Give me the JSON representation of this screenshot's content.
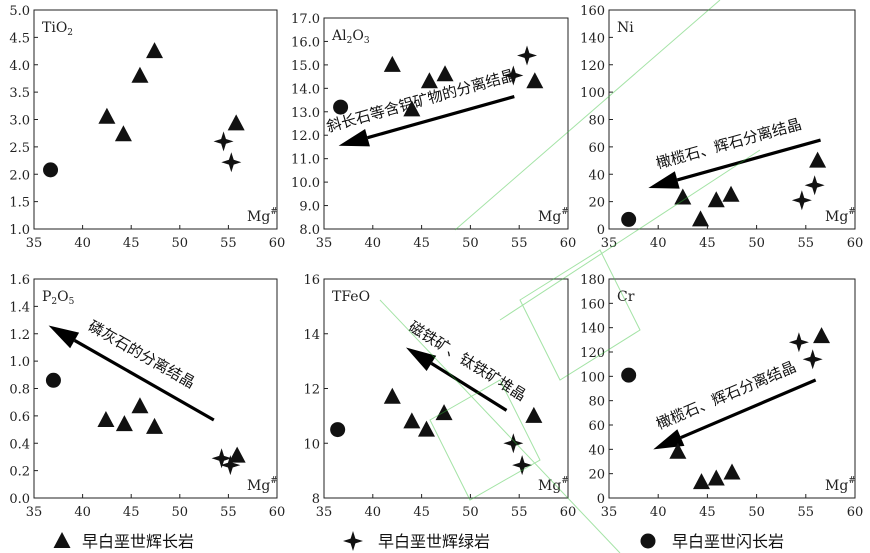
{
  "figure": {
    "legend": [
      {
        "symbol": "triangle",
        "label": "早白垩世辉长岩"
      },
      {
        "symbol": "star",
        "label": "早白垩世辉绿岩"
      },
      {
        "symbol": "circle",
        "label": "早白垩世闪长岩"
      }
    ],
    "colors": {
      "marker": "#111111",
      "axis": "#222222",
      "watermark": "#36c23a"
    }
  },
  "chart_data": [
    {
      "type": "scatter",
      "title": "TiO2",
      "xlabel": "Mg#",
      "xlim": [
        35,
        60
      ],
      "ylim": [
        1.0,
        5.0
      ],
      "xticks": [
        35,
        40,
        45,
        50,
        55,
        60
      ],
      "yticks": [
        1.0,
        1.5,
        2.0,
        2.5,
        3.0,
        3.5,
        4.0,
        4.5,
        5.0
      ],
      "series": [
        {
          "name": "早白垩世辉长岩",
          "marker": "triangle",
          "points": [
            [
              42.5,
              3.05
            ],
            [
              44.2,
              2.73
            ],
            [
              45.9,
              3.8
            ],
            [
              47.4,
              4.25
            ],
            [
              55.8,
              2.93
            ]
          ]
        },
        {
          "name": "早白垩世辉绿岩",
          "marker": "star",
          "points": [
            [
              54.5,
              2.6
            ],
            [
              55.3,
              2.22
            ]
          ]
        },
        {
          "name": "早白垩世闪长岩",
          "marker": "circle",
          "points": [
            [
              36.7,
              2.08
            ]
          ]
        }
      ]
    },
    {
      "type": "scatter",
      "title": "Al2O3",
      "xlabel": "Mg#",
      "xlim": [
        35,
        60
      ],
      "ylim": [
        8.0,
        17.0
      ],
      "xticks": [
        35,
        40,
        45,
        50,
        55,
        60
      ],
      "yticks": [
        8.0,
        9.0,
        10.0,
        11.0,
        12.0,
        13.0,
        14.0,
        15.0,
        16.0,
        17.0
      ],
      "series": [
        {
          "name": "早白垩世辉长岩",
          "marker": "triangle",
          "points": [
            [
              42.0,
              15.0
            ],
            [
              44.0,
              13.1
            ],
            [
              45.8,
              14.3
            ],
            [
              47.4,
              14.6
            ],
            [
              56.6,
              14.3
            ]
          ]
        },
        {
          "name": "早白垩世辉绿岩",
          "marker": "star",
          "points": [
            [
              54.4,
              14.55
            ],
            [
              55.8,
              15.4
            ]
          ]
        },
        {
          "name": "早白垩世闪长岩",
          "marker": "circle",
          "points": [
            [
              36.7,
              13.2
            ]
          ]
        }
      ],
      "annotation": {
        "text": "斜长石等含铝矿物的分离结晶",
        "arrow_from": [
          54.5,
          13.65
        ],
        "arrow_to": [
          36.5,
          11.55
        ]
      }
    },
    {
      "type": "scatter",
      "title": "Ni",
      "xlabel": "Mg#",
      "xlim": [
        35,
        60
      ],
      "ylim": [
        0,
        160
      ],
      "xticks": [
        35,
        40,
        45,
        50,
        55,
        60
      ],
      "yticks": [
        0,
        20,
        40,
        60,
        80,
        100,
        120,
        140,
        160
      ],
      "series": [
        {
          "name": "早白垩世辉长岩",
          "marker": "triangle",
          "points": [
            [
              42.5,
              23
            ],
            [
              44.3,
              7
            ],
            [
              45.9,
              21
            ],
            [
              47.4,
              25
            ],
            [
              56.2,
              50
            ]
          ]
        },
        {
          "name": "早白垩世辉绿岩",
          "marker": "star",
          "points": [
            [
              54.6,
              21
            ],
            [
              55.9,
              32
            ]
          ]
        },
        {
          "name": "早白垩世闪长岩",
          "marker": "circle",
          "points": [
            [
              37.0,
              7
            ]
          ]
        }
      ],
      "annotation": {
        "text": "橄榄石、辉石分离结晶",
        "arrow_from": [
          56.5,
          65
        ],
        "arrow_to": [
          39.0,
          30
        ]
      }
    },
    {
      "type": "scatter",
      "title": "P2O5",
      "xlabel": "Mg#",
      "xlim": [
        35,
        60
      ],
      "ylim": [
        0.0,
        1.6
      ],
      "xticks": [
        35,
        40,
        45,
        50,
        55,
        60
      ],
      "yticks": [
        0.0,
        0.2,
        0.4,
        0.6,
        0.8,
        1.0,
        1.2,
        1.4,
        1.6
      ],
      "series": [
        {
          "name": "早白垩世辉长岩",
          "marker": "triangle",
          "points": [
            [
              42.4,
              0.57
            ],
            [
              44.3,
              0.54
            ],
            [
              45.9,
              0.67
            ],
            [
              47.4,
              0.52
            ],
            [
              55.9,
              0.31
            ]
          ]
        },
        {
          "name": "早白垩世辉绿岩",
          "marker": "star",
          "points": [
            [
              54.3,
              0.29
            ],
            [
              55.2,
              0.24
            ]
          ]
        },
        {
          "name": "早白垩世闪长岩",
          "marker": "circle",
          "points": [
            [
              37.0,
              0.86
            ]
          ]
        }
      ],
      "annotation": {
        "text": "磷灰石的分离结晶",
        "arrow_from": [
          53.5,
          0.57
        ],
        "arrow_to": [
          36.5,
          1.26
        ]
      }
    },
    {
      "type": "scatter",
      "title": "TFeO",
      "xlabel": "Mg#",
      "xlim": [
        35,
        60
      ],
      "ylim": [
        8,
        16
      ],
      "xticks": [
        35,
        40,
        45,
        50,
        55,
        60
      ],
      "yticks": [
        8,
        10,
        12,
        14,
        16
      ],
      "series": [
        {
          "name": "早白垩世辉长岩",
          "marker": "triangle",
          "points": [
            [
              42.0,
              11.7
            ],
            [
              44.0,
              10.8
            ],
            [
              45.5,
              10.5
            ],
            [
              47.3,
              11.1
            ],
            [
              56.5,
              11.0
            ]
          ]
        },
        {
          "name": "早白垩世辉绿岩",
          "marker": "star",
          "points": [
            [
              54.4,
              10.0
            ],
            [
              55.3,
              9.2
            ]
          ]
        },
        {
          "name": "早白垩世闪长岩",
          "marker": "circle",
          "points": [
            [
              36.4,
              10.5
            ]
          ]
        }
      ],
      "annotation": {
        "text": "磁铁矿、钛铁矿堆晶",
        "arrow_from": [
          53.7,
          11.2
        ],
        "arrow_to": [
          43.4,
          13.5
        ]
      }
    },
    {
      "type": "scatter",
      "title": "Cr",
      "xlabel": "Mg#",
      "xlim": [
        35,
        60
      ],
      "ylim": [
        0,
        180
      ],
      "xticks": [
        35,
        40,
        45,
        50,
        55,
        60
      ],
      "yticks": [
        0,
        20,
        40,
        60,
        80,
        100,
        120,
        140,
        160,
        180
      ],
      "series": [
        {
          "name": "早白垩世辉长岩",
          "marker": "triangle",
          "points": [
            [
              42.0,
              38
            ],
            [
              44.4,
              13
            ],
            [
              45.9,
              16
            ],
            [
              47.5,
              21
            ],
            [
              56.6,
              133
            ]
          ]
        },
        {
          "name": "早白垩世辉绿岩",
          "marker": "star",
          "points": [
            [
              54.3,
              128
            ],
            [
              55.7,
              114
            ]
          ]
        },
        {
          "name": "早白垩世闪长岩",
          "marker": "circle",
          "points": [
            [
              37.0,
              101
            ]
          ]
        }
      ],
      "annotation": {
        "text": "橄榄石、辉石分离结晶",
        "arrow_from": [
          56.0,
          97
        ],
        "arrow_to": [
          39.5,
          40
        ]
      }
    }
  ]
}
